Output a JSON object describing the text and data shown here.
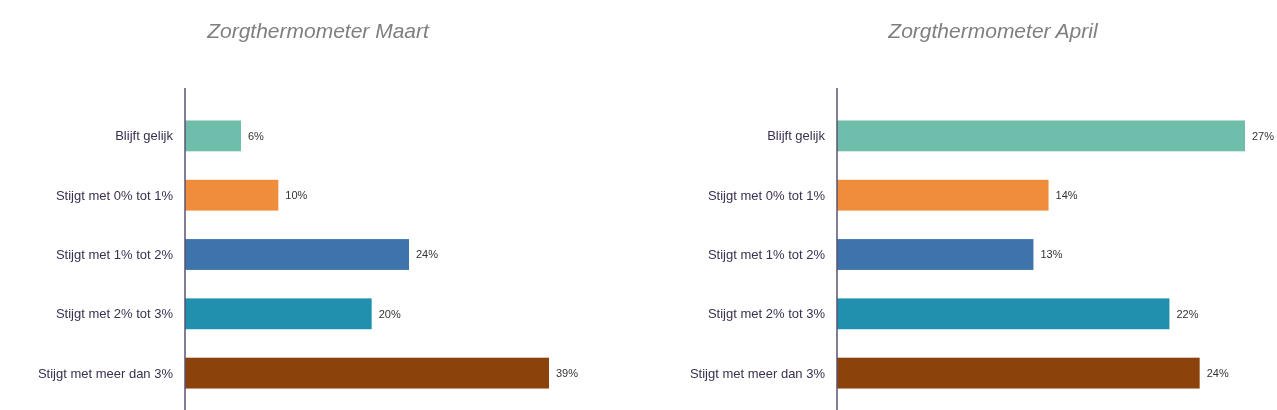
{
  "chart_data": [
    {
      "type": "bar",
      "orientation": "horizontal",
      "title": "Zorgthermometer Maart",
      "categories": [
        "Blijft gelijk",
        "Stijgt met 0% tot 1%",
        "Stijgt met 1% tot 2%",
        "Stijgt met 2% tot 3%",
        "Stijgt met meer dan 3%"
      ],
      "values": [
        6,
        10,
        24,
        20,
        39
      ],
      "value_labels": [
        "6%",
        "10%",
        "24%",
        "20%",
        "39%"
      ],
      "colors": [
        "#6fbdab",
        "#f08d3c",
        "#3c74ab",
        "#2190ae",
        "#8b430b"
      ]
    },
    {
      "type": "bar",
      "orientation": "horizontal",
      "title": "Zorgthermometer April",
      "categories": [
        "Blijft gelijk",
        "Stijgt met 0% tot 1%",
        "Stijgt met 1% tot 2%",
        "Stijgt met 2% tot 3%",
        "Stijgt met meer dan 3%"
      ],
      "values": [
        27,
        14,
        13,
        22,
        24
      ],
      "value_labels": [
        "27%",
        "14%",
        "13%",
        "22%",
        "24%"
      ],
      "colors": [
        "#6fbdab",
        "#f08d3c",
        "#3c74ab",
        "#2190ae",
        "#8b430b"
      ]
    }
  ]
}
